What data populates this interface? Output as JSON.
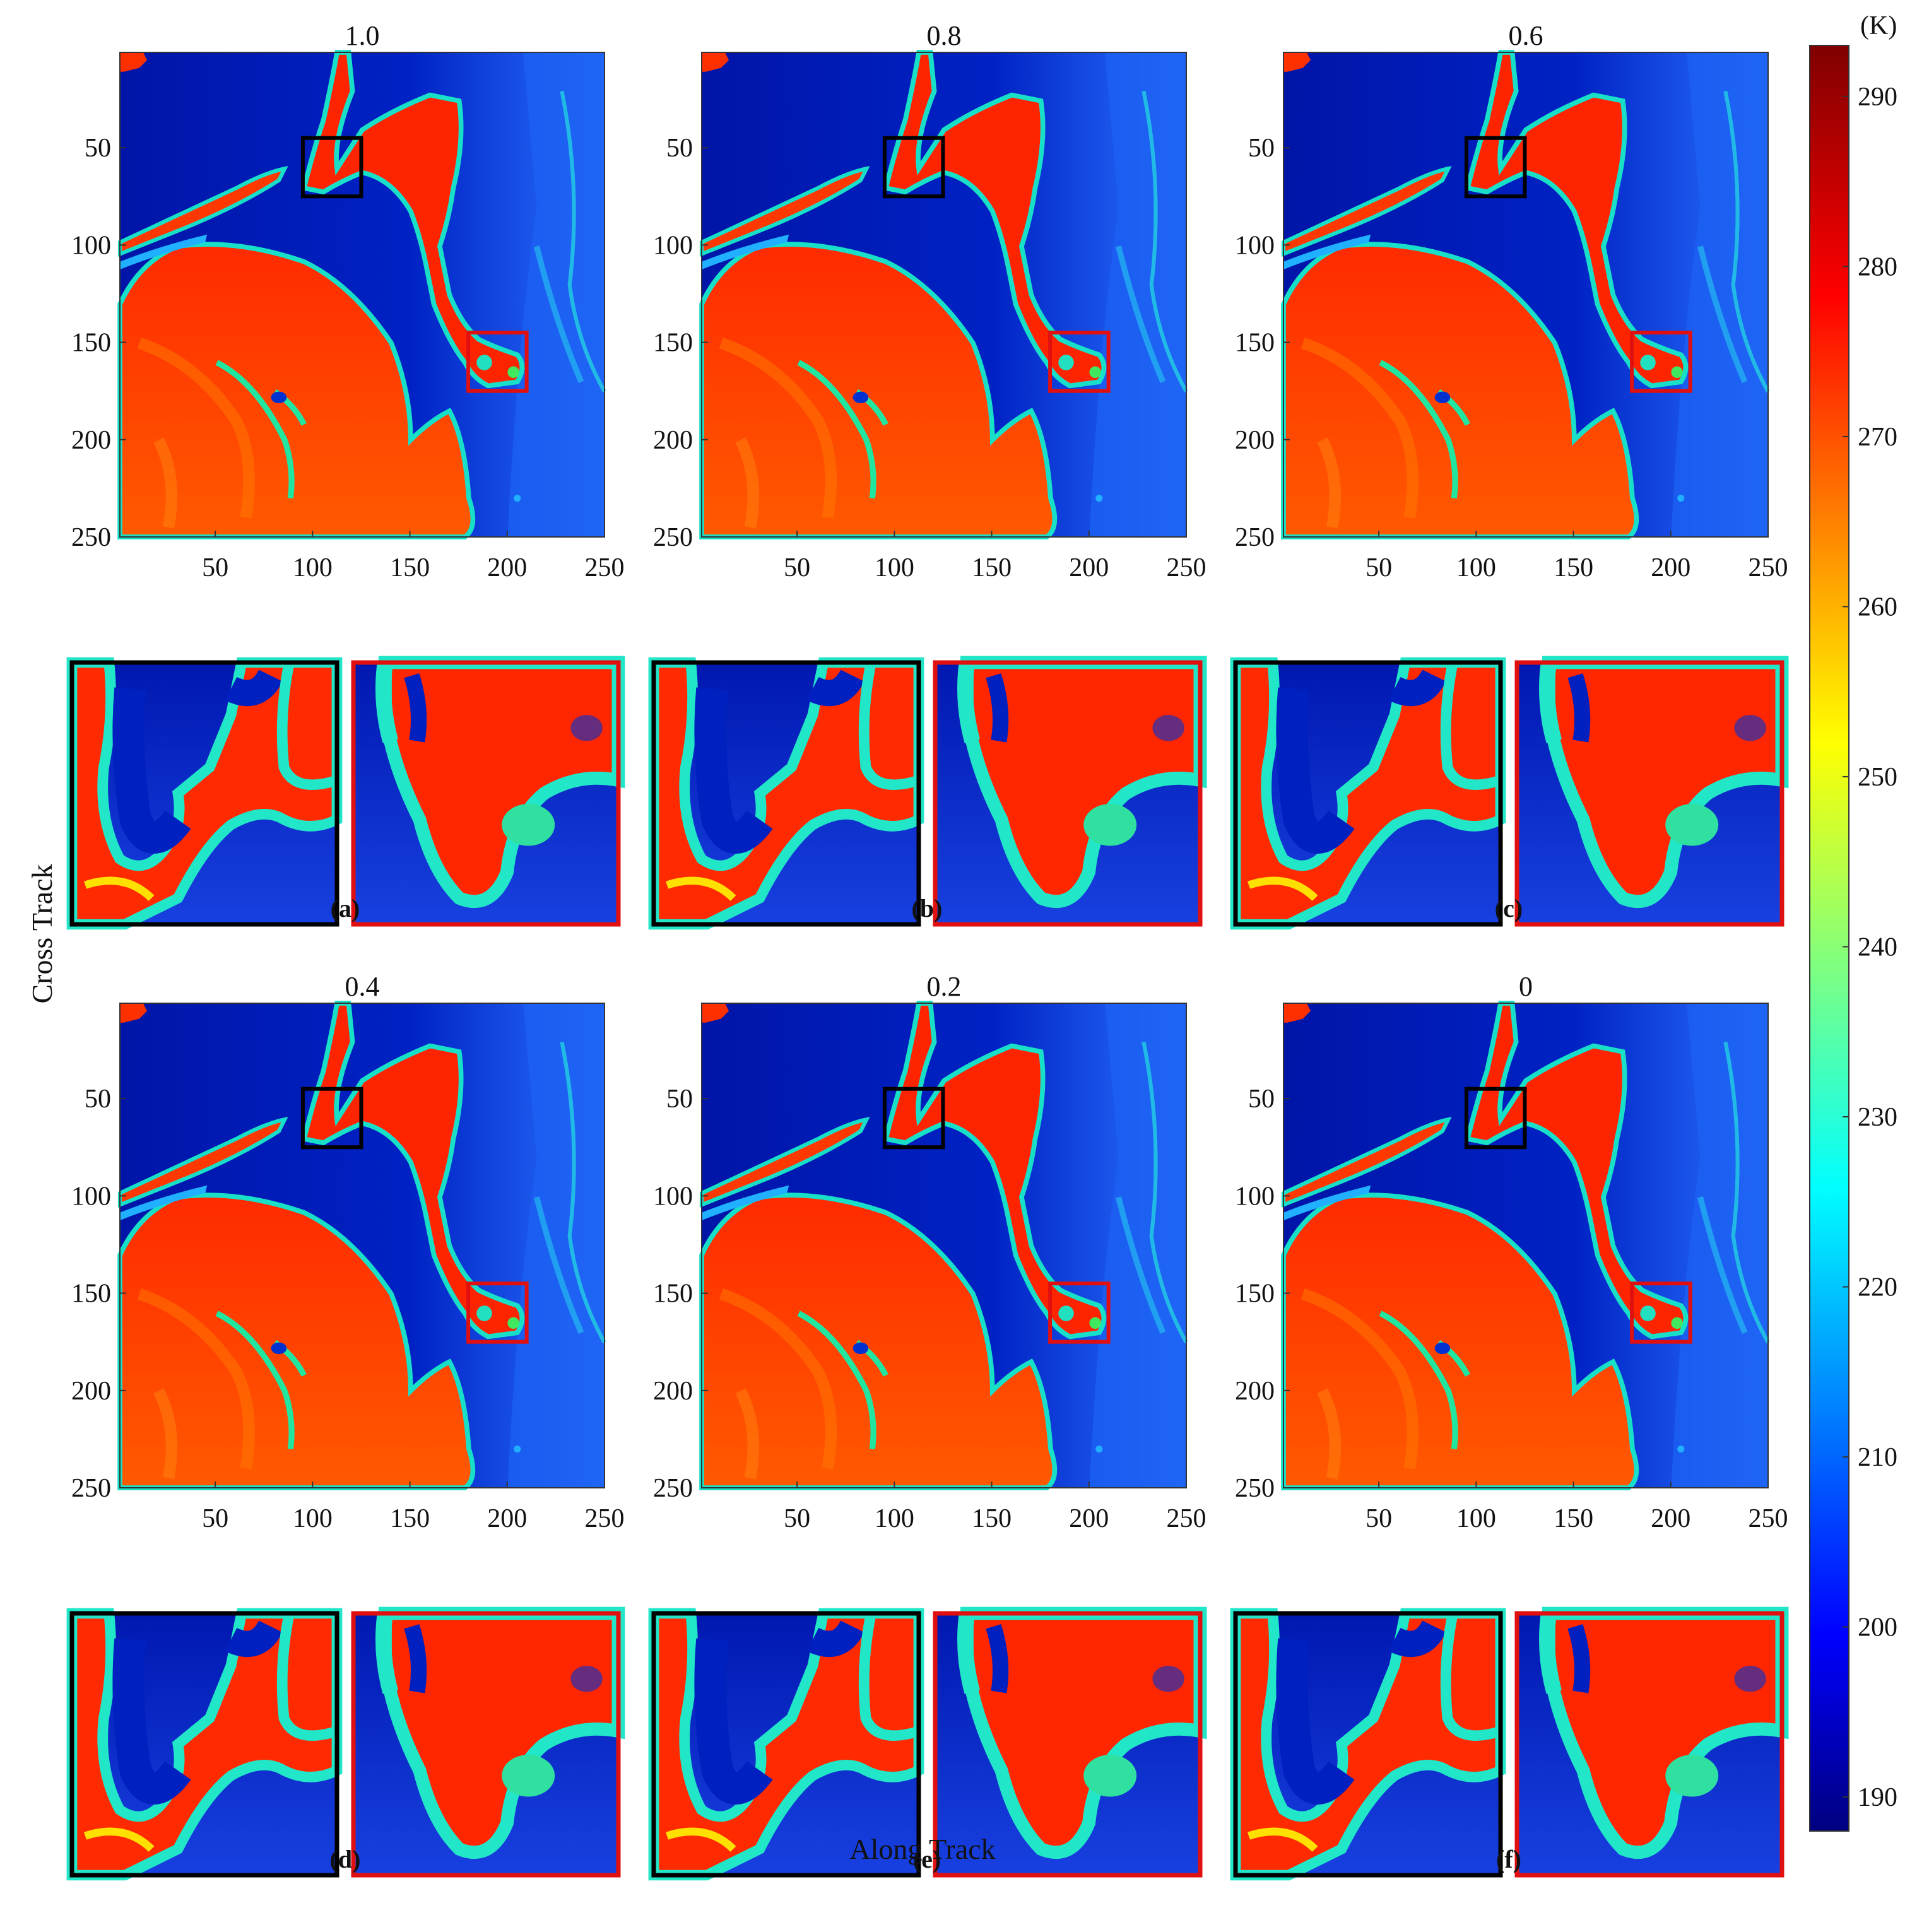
{
  "figure": {
    "ylabel": "Cross Track",
    "xlabel": "Along Track"
  },
  "colorbar": {
    "unit": "(K)",
    "ticks": [
      190,
      200,
      210,
      220,
      230,
      240,
      250,
      260,
      270,
      280,
      290
    ],
    "range": [
      188,
      293
    ],
    "colormap": "jet"
  },
  "chart_data": {
    "type": "heatmap",
    "x_ticks": [
      50,
      100,
      150,
      200,
      250
    ],
    "y_ticks": [
      50,
      100,
      150,
      200,
      250
    ],
    "xlim": [
      1,
      250
    ],
    "ylim": [
      1,
      250
    ],
    "y_reversed": true,
    "inset_boxes": [
      {
        "color": "#000000",
        "x_range": [
          95,
          125
        ],
        "y_range": [
          45,
          75
        ]
      },
      {
        "color": "#e01010",
        "x_range": [
          180,
          210
        ],
        "y_range": [
          145,
          175
        ]
      }
    ],
    "panels": [
      {
        "title": "1.0",
        "letter": "(a)"
      },
      {
        "title": "0.8",
        "letter": "(b)"
      },
      {
        "title": "0.6",
        "letter": "(c)"
      },
      {
        "title": "0.4",
        "letter": "(d)"
      },
      {
        "title": "0.2",
        "letter": "(e)"
      },
      {
        "title": "0",
        "letter": "(f)"
      }
    ]
  }
}
